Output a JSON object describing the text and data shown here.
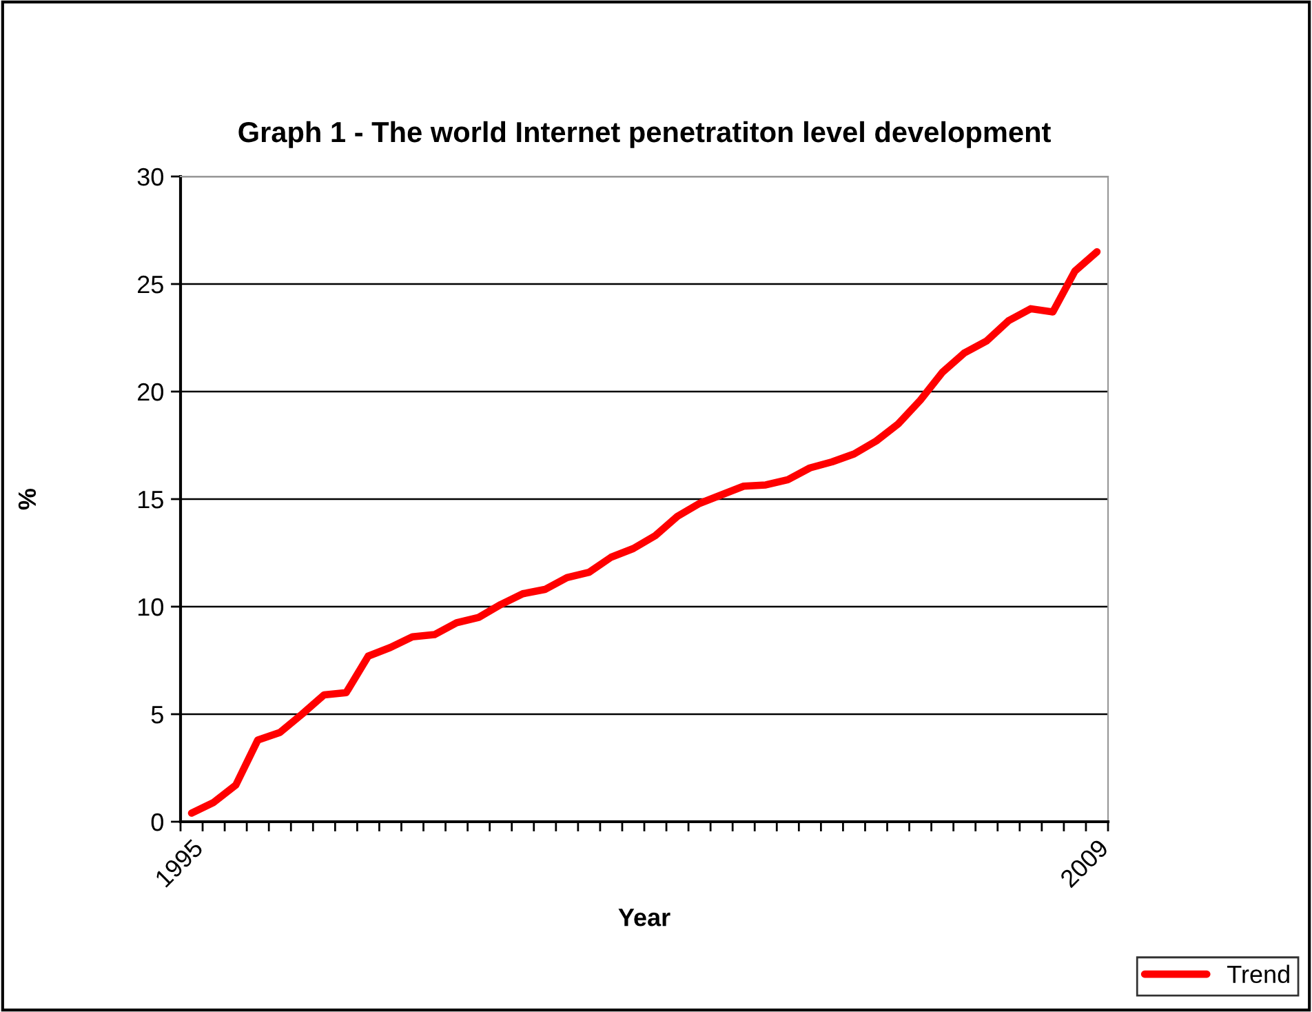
{
  "chart_data": {
    "type": "line",
    "title": "Graph 1 - The world Internet penetratiton level development",
    "xlabel": "Year",
    "ylabel": "%",
    "categories": [
      "1995",
      null,
      null,
      null,
      null,
      null,
      null,
      null,
      null,
      null,
      null,
      null,
      null,
      null,
      null,
      null,
      null,
      null,
      null,
      null,
      null,
      null,
      null,
      null,
      null,
      null,
      null,
      null,
      null,
      null,
      null,
      null,
      null,
      null,
      null,
      null,
      null,
      null,
      null,
      null,
      null,
      "2009"
    ],
    "series": [
      {
        "name": "Trend",
        "color": "#ff0000",
        "values": [
          0.4,
          0.9,
          1.7,
          3.8,
          4.15,
          5.0,
          5.9,
          6.0,
          7.7,
          8.1,
          8.6,
          8.7,
          9.25,
          9.5,
          10.1,
          10.6,
          10.8,
          11.35,
          11.6,
          12.3,
          12.7,
          13.3,
          14.2,
          14.8,
          15.2,
          15.6,
          15.66,
          15.9,
          16.45,
          16.73,
          17.1,
          17.7,
          18.5,
          19.6,
          20.9,
          21.8,
          22.35,
          23.3,
          23.85,
          23.7,
          25.6,
          26.5
        ]
      }
    ],
    "ylim": [
      0,
      30
    ],
    "yticks": [
      0,
      5,
      10,
      15,
      20,
      25,
      30
    ],
    "grid": "y",
    "legend": "bottom right",
    "marker": "none",
    "line_style": "solid"
  }
}
